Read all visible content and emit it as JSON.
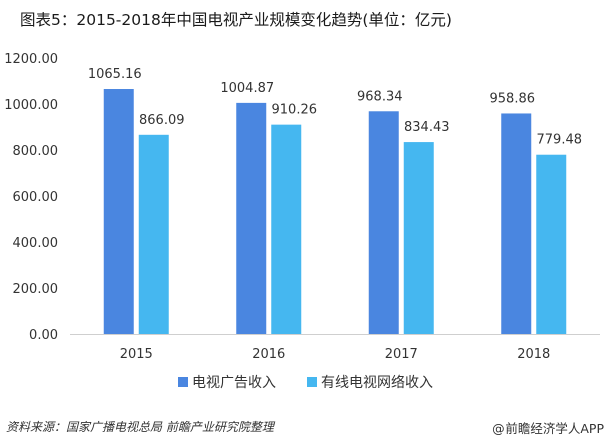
{
  "title": "图表5：2015-2018年中国电视产业规模变化趋势(单位：亿元)",
  "chart_data": {
    "type": "bar",
    "title": "图表5：2015-2018年中国电视产业规模变化趋势(单位：亿元)",
    "categories": [
      "2015",
      "2016",
      "2017",
      "2018"
    ],
    "series": [
      {
        "name": "电视广告收入",
        "values": [
          1065.16,
          1004.87,
          968.34,
          958.86
        ],
        "labels": [
          "1065.16",
          "1004.87",
          "968.34",
          "958.86"
        ],
        "color": "#4a86e0"
      },
      {
        "name": "有线电视网络收入",
        "values": [
          866.09,
          910.26,
          834.43,
          779.48
        ],
        "labels": [
          "866.09",
          "910.26",
          "834.43",
          "779.48"
        ],
        "color": "#45b7f0"
      }
    ],
    "yticks": [
      "0.00",
      "200.00",
      "400.00",
      "600.00",
      "800.00",
      "1000.00",
      "1200.00"
    ],
    "ylim": [
      0,
      1200
    ],
    "xlabel": "",
    "ylabel": "",
    "legend": "bottom-center",
    "grid": false
  },
  "footer": {
    "source": "资料来源：国家广播电视总局 前瞻产业研究院整理",
    "brand": "前瞻经济学人APP",
    "brand_icon": "at-sign-icon"
  },
  "colors": {
    "bar1": "#4a86e0",
    "bar2": "#45b7f0",
    "axis": "#cfcfcf",
    "text": "#333333"
  }
}
